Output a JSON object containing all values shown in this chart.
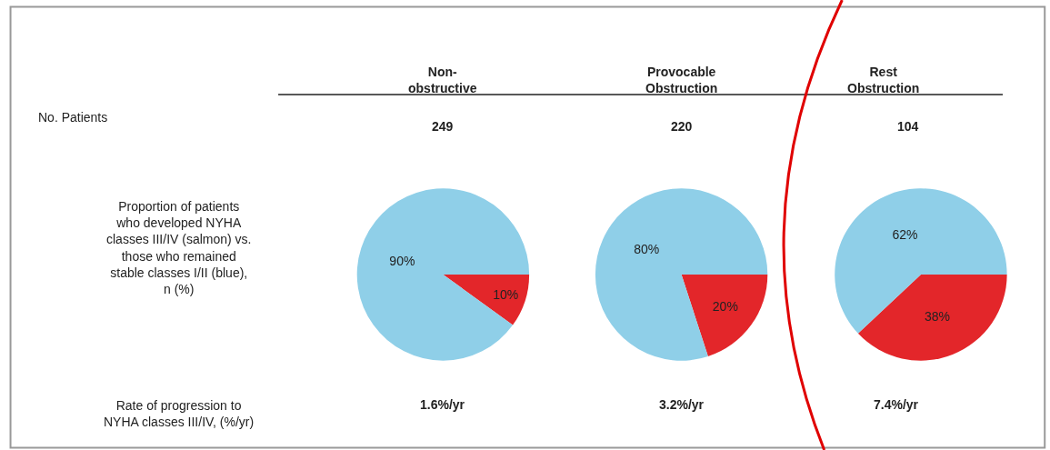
{
  "chart_data": [
    {
      "type": "other",
      "annotations": [
        "No. Patients",
        "Proportion of patients\nwho developed NYHA\nclasses III/IV (salmon) vs.\nthose who remained\nstable classes I/II (blue),\nn (%)",
        "Rate of progression to\nNYHA classes III/IV, (%/yr)"
      ]
    },
    {
      "type": "pie",
      "title": "Non-\nobstructive",
      "categories": [
        null,
        null
      ],
      "values": [
        10,
        90
      ],
      "colors": [
        "#e3262a",
        "#8fcfe8"
      ],
      "value_labels": [
        "10%",
        "90%"
      ],
      "annotations": [
        "249",
        "1.6%/yr"
      ]
    },
    {
      "type": "pie",
      "title": "Provocable\nObstruction",
      "categories": [
        null,
        null
      ],
      "values": [
        20,
        80
      ],
      "colors": [
        "#e3262a",
        "#8fcfe8"
      ],
      "value_labels": [
        "20%",
        "80%"
      ],
      "annotations": [
        "220",
        "3.2%/yr"
      ]
    },
    {
      "type": "pie",
      "title": "Rest\nObstruction",
      "categories": [
        null,
        null
      ],
      "values": [
        38,
        62
      ],
      "colors": [
        "#e3262a",
        "#8fcfe8"
      ],
      "value_labels": [
        "38%",
        "62%"
      ],
      "annotations": [
        "104",
        "7.4%/yr"
      ]
    }
  ]
}
